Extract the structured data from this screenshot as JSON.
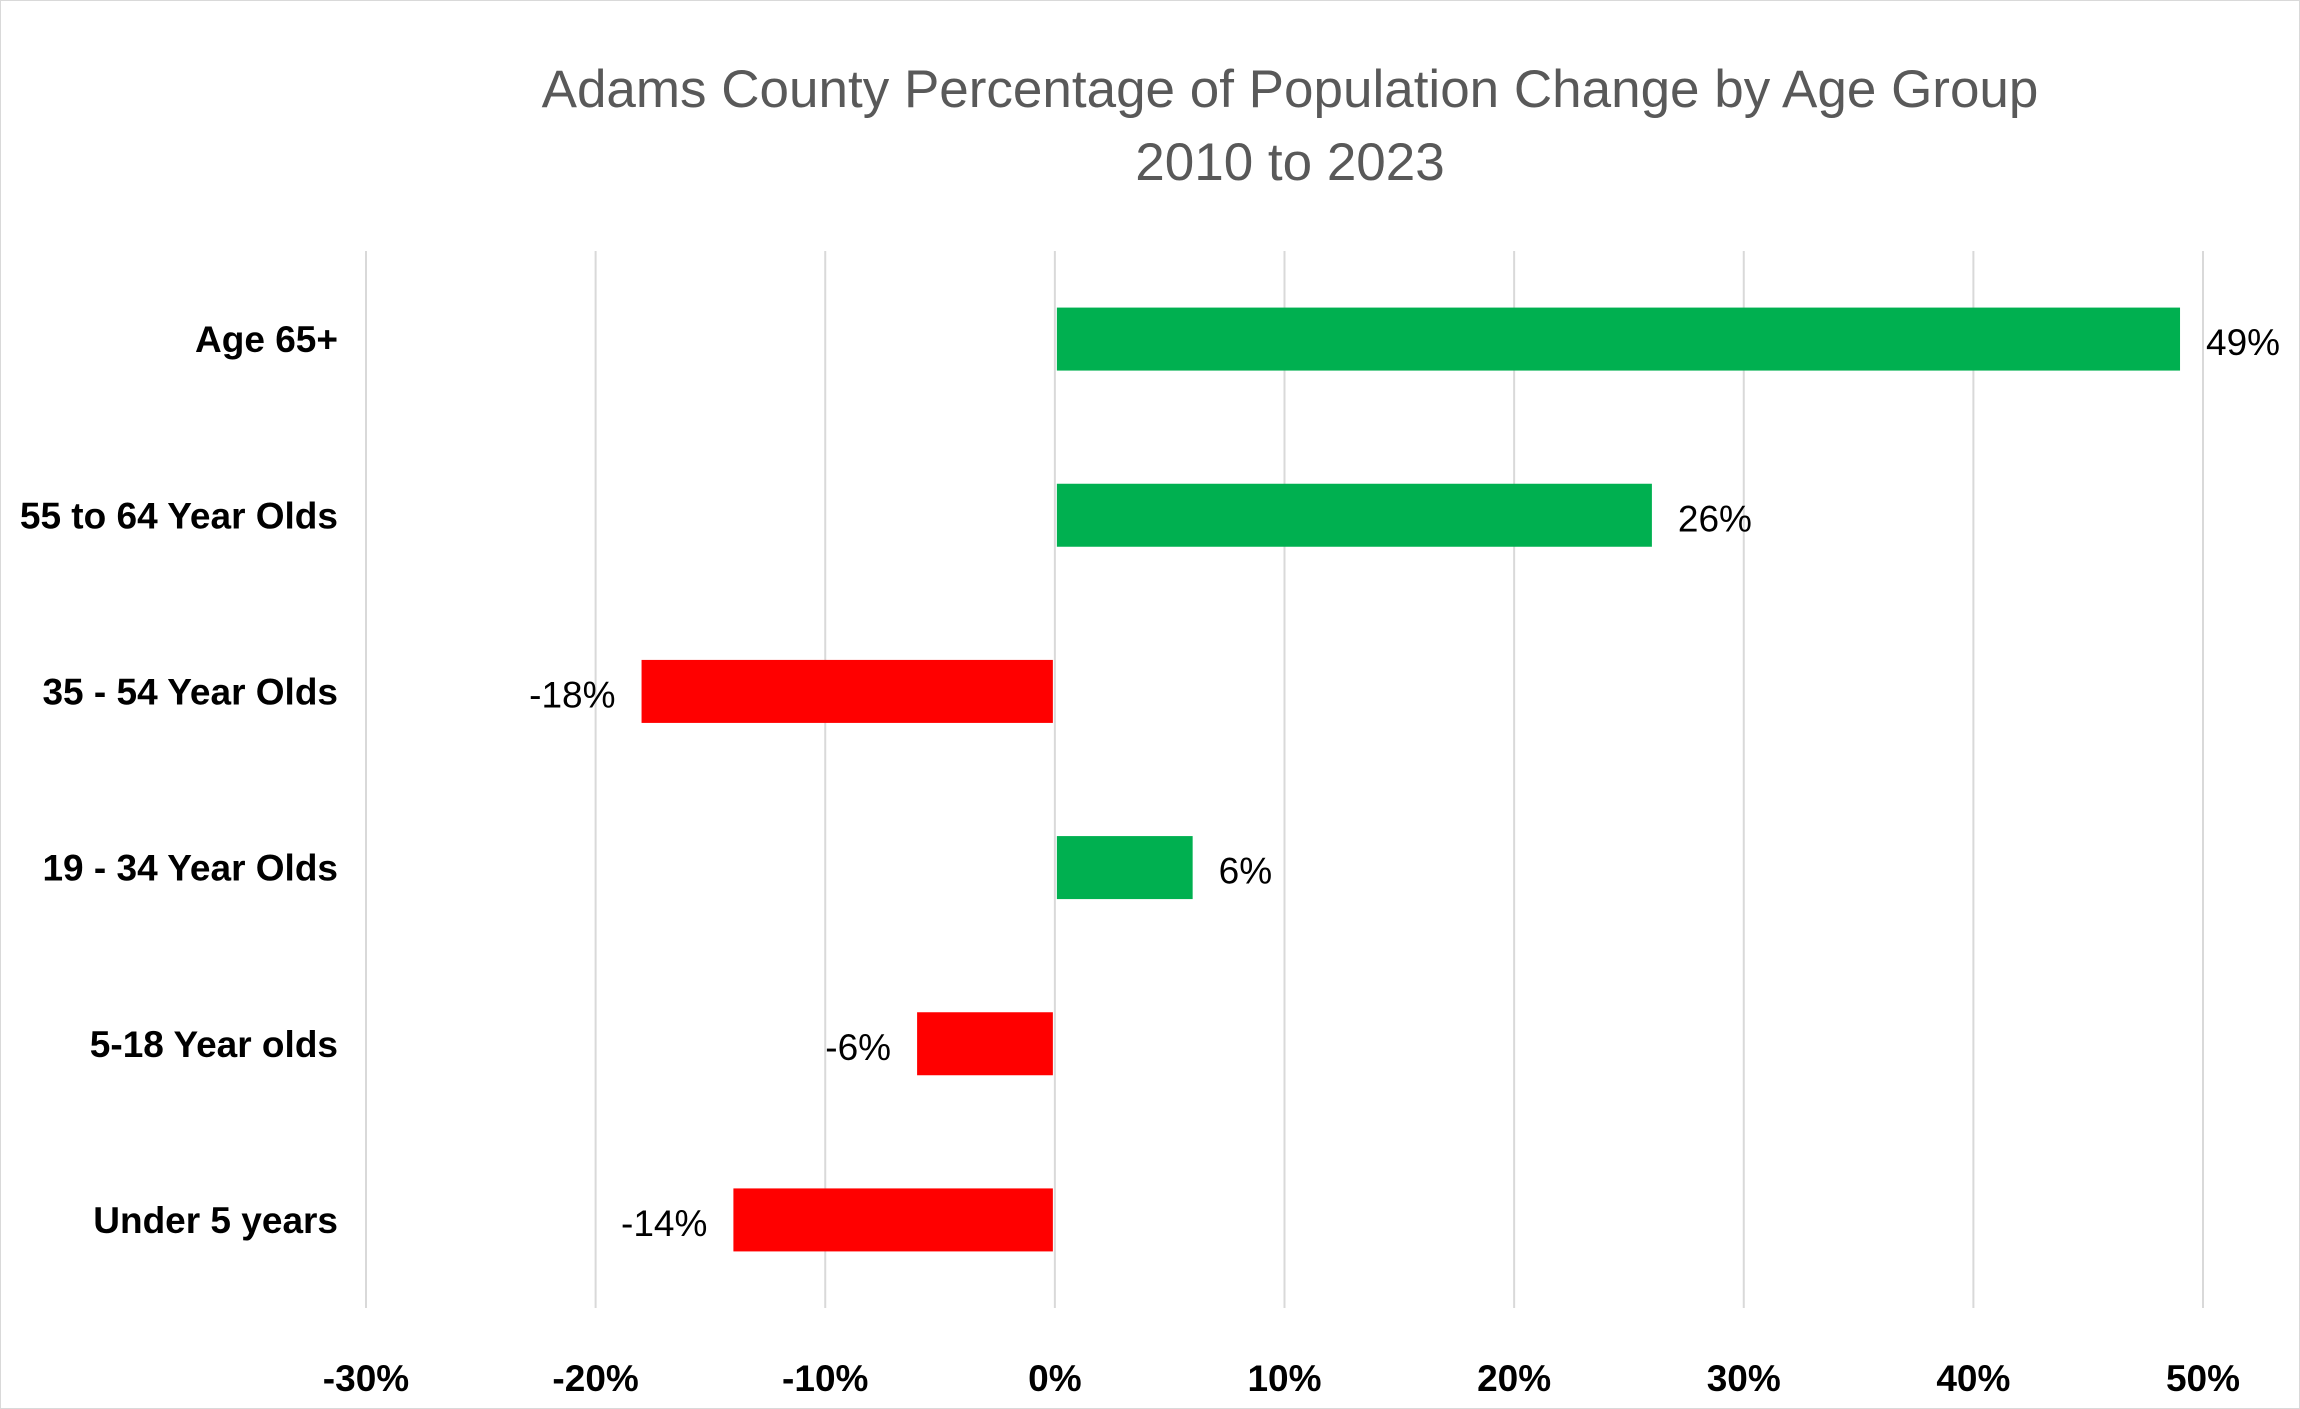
{
  "chart_data": {
    "type": "bar",
    "orientation": "horizontal",
    "title": "Adams County Percentage of Population Change  by Age Group",
    "subtitle": "2010 to 2023",
    "categories": [
      "Age 65+",
      "55 to 64 Year Olds",
      "35 - 54 Year Olds",
      "19 - 34 Year Olds",
      "5-18 Year olds",
      "Under 5 years"
    ],
    "values": [
      49,
      26,
      -18,
      6,
      -6,
      -14
    ],
    "data_labels": [
      "49%",
      "26%",
      "-18%",
      "6%",
      "-6%",
      "-14%"
    ],
    "xlim": [
      -30,
      50
    ],
    "x_ticks": [
      -30,
      -20,
      -10,
      0,
      10,
      20,
      30,
      40,
      50
    ],
    "x_tick_labels": [
      "-30%",
      "-20%",
      "-10%",
      "0%",
      "10%",
      "20%",
      "30%",
      "40%",
      "50%"
    ],
    "xlabel": "",
    "ylabel": "",
    "grid": true,
    "legend": "none",
    "colors": {
      "positive": "#00b050",
      "negative": "#ff0000",
      "grid": "#d9d9d9",
      "title": "#595959"
    }
  }
}
